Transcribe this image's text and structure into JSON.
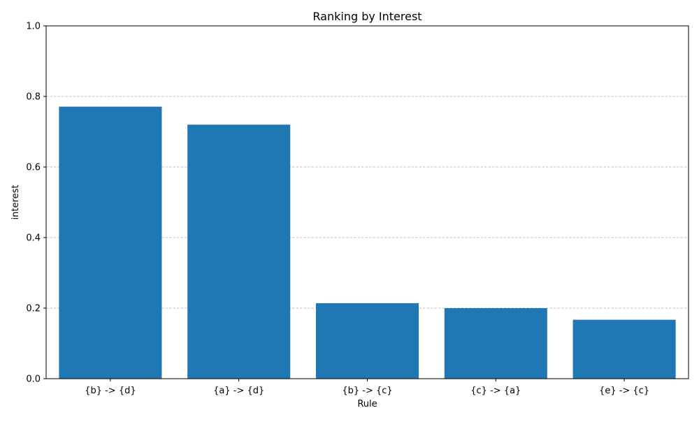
{
  "chart_data": {
    "type": "bar",
    "title": "Ranking by Interest",
    "xlabel": "Rule",
    "ylabel": "interest",
    "categories": [
      "{b} -> {d}",
      "{a} -> {d}",
      "{b} -> {c}",
      "{c} -> {a}",
      "{e} -> {c}"
    ],
    "values": [
      0.771,
      0.72,
      0.214,
      0.2,
      0.167
    ],
    "ylim": [
      0,
      1.0
    ],
    "yticks": [
      "0.0",
      "0.2",
      "0.4",
      "0.6",
      "0.8",
      "1.0"
    ],
    "grid": "y-dashed",
    "bar_color": "#1f77b4",
    "grid_color": "#b0b0b0"
  }
}
